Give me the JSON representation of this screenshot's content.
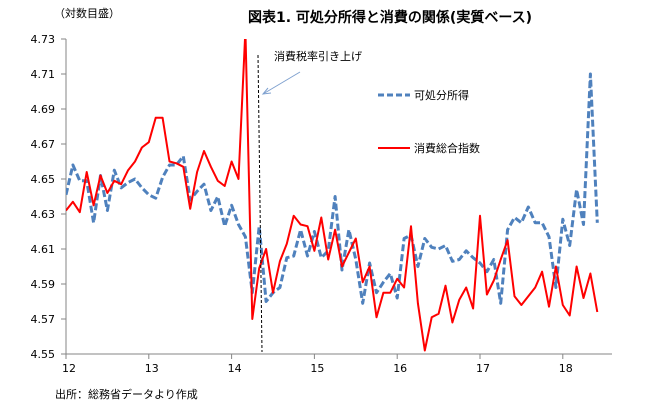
{
  "chart_data": {
    "type": "line",
    "title": "図表1. 可処分所得と消費の関係(実質ベース)",
    "ylabel": "（対数目盛）",
    "xlabel": "",
    "source": "出所：総務省データより作成",
    "ylim": [
      4.55,
      4.73
    ],
    "yticks": [
      "4.55",
      "4.57",
      "4.59",
      "4.61",
      "4.63",
      "4.65",
      "4.67",
      "4.69",
      "4.71",
      "4.73"
    ],
    "xlim": [
      12,
      18.6
    ],
    "xticks": [
      "12",
      "13",
      "14",
      "15",
      "16",
      "17",
      "18"
    ],
    "x_start": 12,
    "x_step": 0.08333,
    "grid": false,
    "legend_position": "top-right",
    "annotation": {
      "text": "消費税率引き上げ",
      "x": 14.25
    },
    "series": [
      {
        "name": "可処分所得",
        "color": "#4f81bd",
        "style": "dashed",
        "values": [
          4.641,
          4.658,
          4.649,
          4.649,
          4.625,
          4.652,
          4.632,
          4.655,
          4.645,
          4.648,
          4.65,
          4.645,
          4.641,
          4.639,
          4.651,
          4.658,
          4.658,
          4.663,
          4.638,
          4.643,
          4.647,
          4.632,
          4.64,
          4.623,
          4.635,
          4.624,
          4.617,
          4.585,
          4.623,
          4.58,
          4.585,
          4.588,
          4.605,
          4.606,
          4.621,
          4.606,
          4.62,
          4.605,
          4.609,
          4.64,
          4.598,
          4.621,
          4.604,
          4.579,
          4.602,
          4.585,
          4.591,
          4.596,
          4.582,
          4.616,
          4.618,
          4.6,
          4.616,
          4.611,
          4.61,
          4.612,
          4.603,
          4.604,
          4.609,
          4.605,
          4.602,
          4.597,
          4.604,
          4.579,
          4.621,
          4.628,
          4.625,
          4.634,
          4.625,
          4.625,
          4.617,
          4.588,
          4.627,
          4.612,
          4.644,
          4.624,
          4.71,
          4.625
        ]
      },
      {
        "name": "消費総合指数",
        "color": "#ff0000",
        "style": "solid",
        "values": [
          4.632,
          4.637,
          4.631,
          4.654,
          4.635,
          4.652,
          4.642,
          4.649,
          4.647,
          4.655,
          4.66,
          4.668,
          4.671,
          4.685,
          4.685,
          4.66,
          4.659,
          4.657,
          4.633,
          4.654,
          4.666,
          4.657,
          4.649,
          4.646,
          4.66,
          4.65,
          4.735,
          4.57,
          4.599,
          4.61,
          4.585,
          4.603,
          4.613,
          4.629,
          4.624,
          4.623,
          4.609,
          4.628,
          4.604,
          4.621,
          4.6,
          4.608,
          4.616,
          4.591,
          4.6,
          4.571,
          4.585,
          4.585,
          4.593,
          4.588,
          4.623,
          4.579,
          4.552,
          4.571,
          4.573,
          4.589,
          4.568,
          4.581,
          4.588,
          4.576,
          4.629,
          4.584,
          4.592,
          4.604,
          4.615,
          4.583,
          4.578,
          4.583,
          4.588,
          4.597,
          4.577,
          4.6,
          4.578,
          4.572,
          4.6,
          4.582,
          4.596,
          4.574
        ]
      }
    ]
  }
}
